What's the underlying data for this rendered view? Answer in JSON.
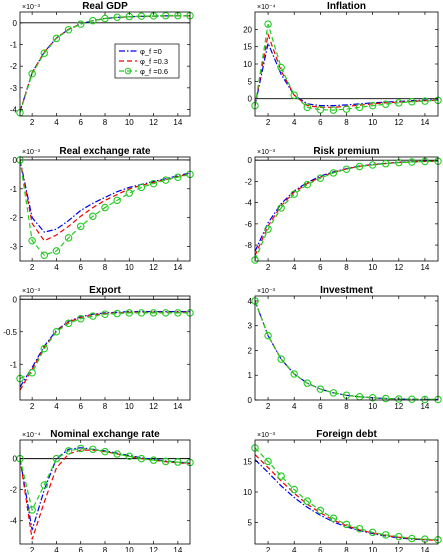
{
  "chart_data": {
    "type": "line",
    "legend": {
      "placement": "inside top-right of first panel",
      "entries": [
        "φ_f =0",
        "φ_f =0.3",
        "φ_f =0.6"
      ]
    },
    "series_style": [
      {
        "name": "φ_f =0",
        "color": "#0000ee",
        "dash": "dash-dot",
        "marker": "none"
      },
      {
        "name": "φ_f =0.3",
        "color": "#ee0000",
        "dash": "dashed",
        "marker": "none"
      },
      {
        "name": "φ_f =0.6",
        "color": "#22cc22",
        "dash": "dashed",
        "marker": "circle"
      }
    ],
    "x": [
      1,
      2,
      3,
      4,
      5,
      6,
      7,
      8,
      9,
      10,
      11,
      12,
      13,
      14,
      15
    ],
    "xlim": [
      1,
      15
    ],
    "xticks": [
      2,
      4,
      6,
      8,
      10,
      12,
      14
    ],
    "panels": [
      {
        "title": "Real GDP",
        "exponent": "×10⁻³",
        "ylim": [
          -4.3,
          0.5
        ],
        "yticks": [
          0,
          -1,
          -2,
          -3,
          -4
        ],
        "zero_line": true,
        "series": [
          {
            "name": "φ_f =0",
            "values": [
              -4.1,
              -2.3,
              -1.35,
              -0.7,
              -0.3,
              -0.05,
              0.1,
              0.2,
              0.25,
              0.28,
              0.3,
              0.31,
              0.32,
              0.32,
              0.32
            ]
          },
          {
            "name": "φ_f =0.3",
            "values": [
              -4.1,
              -2.3,
              -1.35,
              -0.7,
              -0.3,
              -0.05,
              0.1,
              0.2,
              0.25,
              0.28,
              0.3,
              0.31,
              0.32,
              0.32,
              0.32
            ]
          },
          {
            "name": "φ_f =0.6",
            "values": [
              -4.15,
              -2.35,
              -1.4,
              -0.72,
              -0.32,
              -0.06,
              0.1,
              0.2,
              0.26,
              0.29,
              0.31,
              0.32,
              0.33,
              0.33,
              0.33
            ]
          }
        ]
      },
      {
        "title": "Inflation",
        "exponent": "×10⁻⁴",
        "ylim": [
          -5,
          25
        ],
        "yticks": [
          0,
          5,
          10,
          15,
          20
        ],
        "zero_line": true,
        "series": [
          {
            "name": "φ_f =0",
            "values": [
              -2,
              16,
              7,
              1,
              -1.5,
              -2,
              -2,
              -1.8,
              -1.5,
              -1.2,
              -1,
              -0.8,
              -0.6,
              -0.4,
              -0.3
            ]
          },
          {
            "name": "φ_f =0.3",
            "values": [
              -2,
              18.5,
              8,
              1,
              -2,
              -2.5,
              -2.5,
              -2.2,
              -1.9,
              -1.5,
              -1.2,
              -1,
              -0.8,
              -0.6,
              -0.4
            ]
          },
          {
            "name": "φ_f =0.6",
            "values": [
              -2,
              21.5,
              9,
              1,
              -2.5,
              -3.2,
              -3.3,
              -3,
              -2.5,
              -2,
              -1.6,
              -1.2,
              -0.9,
              -0.7,
              -0.5
            ]
          }
        ]
      },
      {
        "title": "Real exchange rate",
        "exponent": "×10⁻³",
        "ylim": [
          -3.5,
          0.1
        ],
        "yticks": [
          0,
          -1,
          -2,
          -3
        ],
        "zero_line": true,
        "series": [
          {
            "name": "φ_f =0",
            "values": [
              0,
              -2,
              -2.5,
              -2.4,
              -2.1,
              -1.75,
              -1.5,
              -1.3,
              -1.1,
              -0.95,
              -0.85,
              -0.75,
              -0.65,
              -0.55,
              -0.45
            ]
          },
          {
            "name": "φ_f =0.3",
            "values": [
              0,
              -2.2,
              -2.8,
              -2.6,
              -2.3,
              -1.95,
              -1.65,
              -1.4,
              -1.2,
              -1.0,
              -0.88,
              -0.78,
              -0.68,
              -0.58,
              -0.48
            ]
          },
          {
            "name": "φ_f =0.6",
            "values": [
              0,
              -2.8,
              -3.3,
              -3.15,
              -2.7,
              -2.3,
              -1.95,
              -1.65,
              -1.4,
              -1.15,
              -0.95,
              -0.82,
              -0.7,
              -0.6,
              -0.5
            ]
          }
        ]
      },
      {
        "title": "Risk premium",
        "exponent": "×10⁻³",
        "ylim": [
          -9.5,
          0.3
        ],
        "yticks": [
          0,
          -2,
          -4,
          -6,
          -8
        ],
        "zero_line": true,
        "series": [
          {
            "name": "φ_f =0",
            "values": [
              -8.6,
              -5.9,
              -4.1,
              -2.9,
              -2.1,
              -1.5,
              -1.1,
              -0.8,
              -0.55,
              -0.4,
              -0.3,
              -0.2,
              -0.15,
              -0.1,
              -0.08
            ]
          },
          {
            "name": "φ_f =0.3",
            "values": [
              -9.0,
              -6.2,
              -4.3,
              -3.0,
              -2.2,
              -1.6,
              -1.15,
              -0.82,
              -0.58,
              -0.42,
              -0.31,
              -0.21,
              -0.16,
              -0.11,
              -0.09
            ]
          },
          {
            "name": "φ_f =0.6",
            "values": [
              -9.4,
              -6.5,
              -4.5,
              -3.2,
              -2.3,
              -1.7,
              -1.2,
              -0.85,
              -0.6,
              -0.45,
              -0.33,
              -0.23,
              -0.17,
              -0.12,
              -0.1
            ]
          }
        ]
      },
      {
        "title": "Export",
        "exponent": "×10⁻³",
        "ylim": [
          -1.55,
          0.05
        ],
        "yticks": [
          0,
          -0.5,
          -1
        ],
        "zero_line": true,
        "series": [
          {
            "name": "φ_f =0",
            "values": [
              -1.35,
              -1.05,
              -0.72,
              -0.48,
              -0.34,
              -0.27,
              -0.23,
              -0.21,
              -0.2,
              -0.19,
              -0.19,
              -0.19,
              -0.19,
              -0.19,
              -0.19
            ]
          },
          {
            "name": "φ_f =0.3",
            "values": [
              -1.4,
              -1.08,
              -0.74,
              -0.49,
              -0.35,
              -0.28,
              -0.24,
              -0.22,
              -0.21,
              -0.2,
              -0.2,
              -0.2,
              -0.2,
              -0.2,
              -0.2
            ]
          },
          {
            "name": "φ_f =0.6",
            "values": [
              -1.22,
              -1.13,
              -0.76,
              -0.5,
              -0.37,
              -0.3,
              -0.26,
              -0.23,
              -0.22,
              -0.21,
              -0.21,
              -0.21,
              -0.21,
              -0.21,
              -0.21
            ]
          }
        ]
      },
      {
        "title": "Investment",
        "exponent": "×10⁻³",
        "ylim": [
          0,
          4.2
        ],
        "yticks": [
          0,
          1,
          2,
          3,
          4
        ],
        "zero_line": false,
        "series": [
          {
            "name": "φ_f =0",
            "values": [
              4.0,
              2.6,
              1.65,
              1.05,
              0.68,
              0.44,
              0.29,
              0.19,
              0.13,
              0.09,
              0.06,
              0.04,
              0.03,
              0.02,
              0.02
            ]
          },
          {
            "name": "φ_f =0.3",
            "values": [
              4.0,
              2.6,
              1.65,
              1.05,
              0.68,
              0.44,
              0.29,
              0.19,
              0.13,
              0.09,
              0.06,
              0.04,
              0.03,
              0.02,
              0.02
            ]
          },
          {
            "name": "φ_f =0.6",
            "values": [
              4.0,
              2.6,
              1.65,
              1.05,
              0.68,
              0.44,
              0.29,
              0.19,
              0.13,
              0.09,
              0.06,
              0.04,
              0.03,
              0.02,
              0.02
            ]
          }
        ]
      },
      {
        "title": "Nominal exchange rate",
        "exponent": "×10⁻⁴",
        "ylim": [
          -5.5,
          1.2
        ],
        "yticks": [
          0,
          -2,
          -4
        ],
        "zero_line": true,
        "series": [
          {
            "name": "φ_f =0",
            "values": [
              0,
              -4.6,
              -2.0,
              0.0,
              0.6,
              0.7,
              0.6,
              0.5,
              0.35,
              0.2,
              0.05,
              -0.05,
              -0.15,
              -0.22,
              -0.3
            ]
          },
          {
            "name": "φ_f =0.3",
            "values": [
              0,
              -5.2,
              -2.8,
              -0.6,
              0.3,
              0.55,
              0.55,
              0.45,
              0.3,
              0.15,
              0.0,
              -0.1,
              -0.2,
              -0.27,
              -0.33
            ]
          },
          {
            "name": "φ_f =0.6",
            "values": [
              0,
              -3.3,
              -1.7,
              0.0,
              0.5,
              0.65,
              0.6,
              0.45,
              0.3,
              0.15,
              0.0,
              -0.1,
              -0.18,
              -0.22,
              -0.25
            ]
          }
        ]
      },
      {
        "title": "Foreign debt",
        "exponent": "×10⁻³",
        "ylim": [
          1.5,
          18.5
        ],
        "yticks": [
          5,
          10,
          15
        ],
        "zero_line": false,
        "series": [
          {
            "name": "φ_f =0",
            "values": [
              15.3,
              13.2,
              11.0,
              9.1,
              7.5,
              6.2,
              5.1,
              4.3,
              3.7,
              3.2,
              2.8,
              2.5,
              2.3,
              2.2,
              2.1
            ]
          },
          {
            "name": "φ_f =0.3",
            "values": [
              16.1,
              14.0,
              11.8,
              9.8,
              8.0,
              6.6,
              5.4,
              4.5,
              3.8,
              3.3,
              2.9,
              2.6,
              2.4,
              2.2,
              2.1
            ]
          },
          {
            "name": "φ_f =0.6",
            "values": [
              17.2,
              15.0,
              12.6,
              10.4,
              8.5,
              7.0,
              5.7,
              4.7,
              4.0,
              3.4,
              3.0,
              2.7,
              2.4,
              2.3,
              2.2
            ]
          }
        ]
      }
    ]
  }
}
